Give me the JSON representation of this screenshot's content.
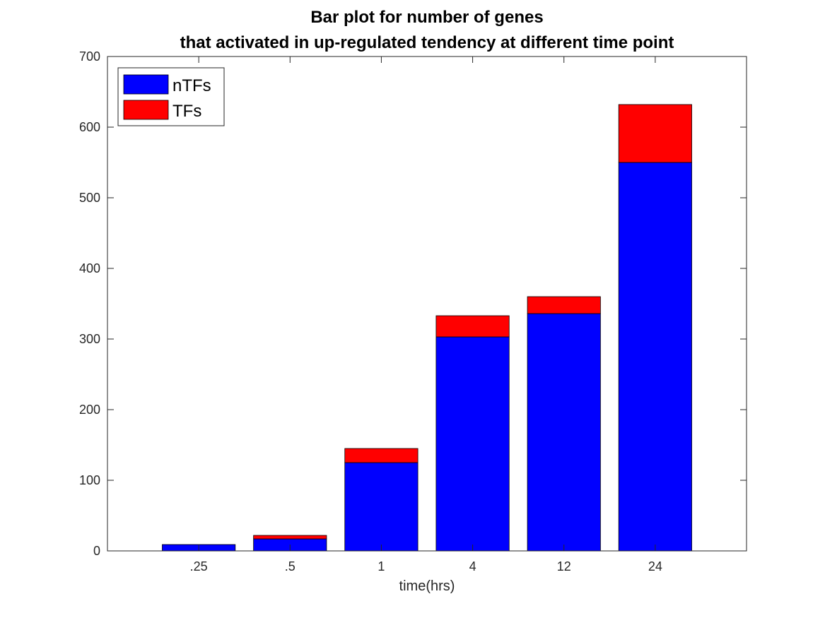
{
  "chart_data": {
    "type": "bar",
    "stacked": true,
    "title_lines": [
      "Bar plot for number of genes",
      "that activated in up-regulated tendency at different time point"
    ],
    "xlabel": "time(hrs)",
    "ylabel": "",
    "categories": [
      ".25",
      ".5",
      "1",
      "4",
      "12",
      "24"
    ],
    "series": [
      {
        "name": "nTFs",
        "color": "#0000ff",
        "values": [
          9,
          17,
          125,
          303,
          336,
          550
        ]
      },
      {
        "name": "TFs",
        "color": "#ff0000",
        "values": [
          0,
          5,
          20,
          30,
          24,
          82
        ]
      }
    ],
    "ylim": [
      0,
      700
    ],
    "yticks": [
      0,
      100,
      200,
      300,
      400,
      500,
      600,
      700
    ],
    "grid": false,
    "legend_position": "top-left"
  }
}
